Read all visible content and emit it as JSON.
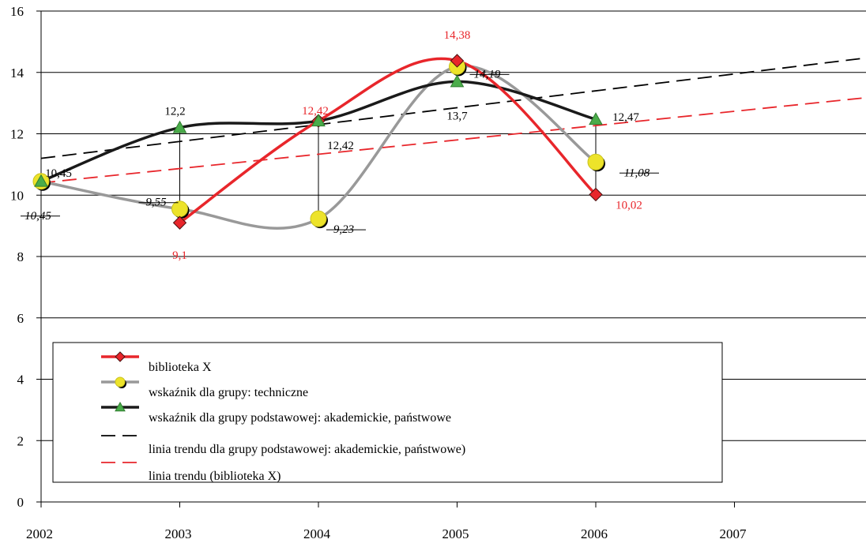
{
  "chart_data": {
    "type": "line",
    "title": "",
    "xlabel": "",
    "ylabel": "",
    "x_ticks": [
      "2002",
      "2003",
      "2004",
      "2005",
      "2006",
      "2007"
    ],
    "x_range": [
      2002,
      2007.95
    ],
    "ylim": [
      0,
      16
    ],
    "y_ticks": [
      "0",
      "2",
      "4",
      "6",
      "8",
      "10",
      "12",
      "14",
      "16"
    ],
    "grid": "horizontal",
    "legend_position": "bottom-left",
    "series": [
      {
        "name": "biblioteka X",
        "color": "#e8262b",
        "marker": "diamond",
        "x": [
          2003,
          2004,
          2005,
          2006
        ],
        "y": [
          9.1,
          12.42,
          14.38,
          10.02
        ],
        "labels": [
          "9,1",
          "12,42",
          "14,38",
          "10,02"
        ]
      },
      {
        "name": "wskaźnik dla grupy: techniczne",
        "color": "#999999",
        "marker": "circle",
        "marker_color": "#ede32a",
        "x": [
          2002,
          2003,
          2004,
          2005,
          2006
        ],
        "y": [
          10.45,
          9.55,
          9.23,
          14.19,
          11.08
        ],
        "labels": [
          "10,45",
          "9,55",
          "9,23",
          "14,19",
          "11,08"
        ]
      },
      {
        "name": "wskaźnik dla grupy podstawowej: akademickie, państwowe",
        "color": "#1a1a1a",
        "marker": "triangle",
        "marker_color": "#4aac4a",
        "x": [
          2002,
          2003,
          2004,
          2005,
          2006
        ],
        "y": [
          10.45,
          12.2,
          12.42,
          13.7,
          12.47
        ],
        "labels": [
          "10,45",
          "12,2",
          "12,42",
          "13,7",
          "12,47"
        ]
      },
      {
        "name": "linia trendu dla grupy podstawowej: akademickie, państwowe)",
        "color": "#000000",
        "dashed": true,
        "x": [
          2002,
          2008
        ],
        "y": [
          11.2,
          14.5
        ]
      },
      {
        "name": "linia trendu (biblioteka X)",
        "color": "#e8262b",
        "dashed": true,
        "x": [
          2002,
          2008
        ],
        "y": [
          10.4,
          13.2
        ]
      }
    ]
  }
}
